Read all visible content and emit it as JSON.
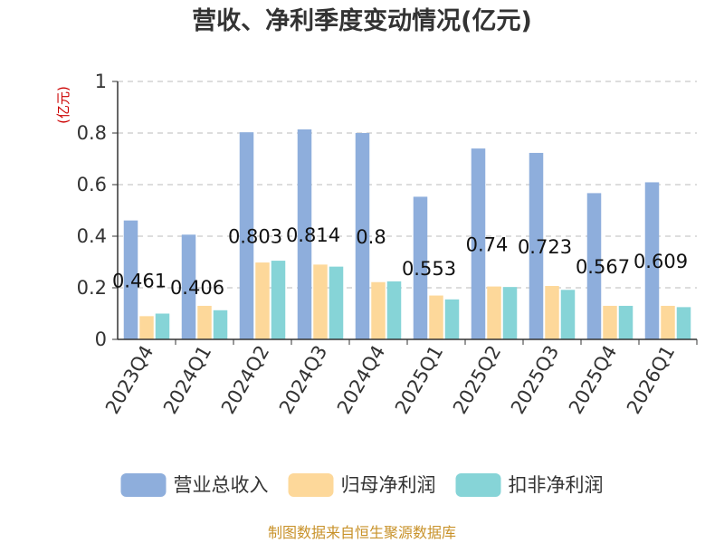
{
  "chart_data": {
    "type": "bar",
    "title": "营收、净利季度变动情况(亿元)",
    "ylabel": "(亿元)",
    "xlabel": "",
    "ylim": [
      0,
      1
    ],
    "yticks": [
      "0",
      "0.2",
      "0.4",
      "0.6",
      "0.8",
      "1"
    ],
    "grid": true,
    "legend_position": "bottom",
    "categories": [
      "2023Q4",
      "2024Q1",
      "2024Q2",
      "2024Q3",
      "2024Q4",
      "2025Q1",
      "2025Q2",
      "2025Q3",
      "2025Q4",
      "2026Q1"
    ],
    "series": [
      {
        "name": "营业总收入",
        "color": "#8eaedc",
        "values": [
          0.461,
          0.406,
          0.803,
          0.814,
          0.8,
          0.553,
          0.74,
          0.723,
          0.567,
          0.609
        ],
        "data_labels": [
          "0.461",
          "0.406",
          "0.803",
          "0.814",
          "0.8",
          "0.553",
          "0.74",
          "0.723",
          "0.567",
          "0.609"
        ]
      },
      {
        "name": "归母净利润",
        "color": "#fdd89a",
        "values": [
          0.09,
          0.13,
          0.298,
          0.29,
          0.222,
          0.17,
          0.205,
          0.207,
          0.13,
          0.13
        ]
      },
      {
        "name": "扣非净利润",
        "color": "#86d4d7",
        "values": [
          0.1,
          0.113,
          0.305,
          0.282,
          0.225,
          0.155,
          0.203,
          0.192,
          0.13,
          0.125
        ]
      }
    ],
    "source": "制图数据来自恒生聚源数据库"
  }
}
